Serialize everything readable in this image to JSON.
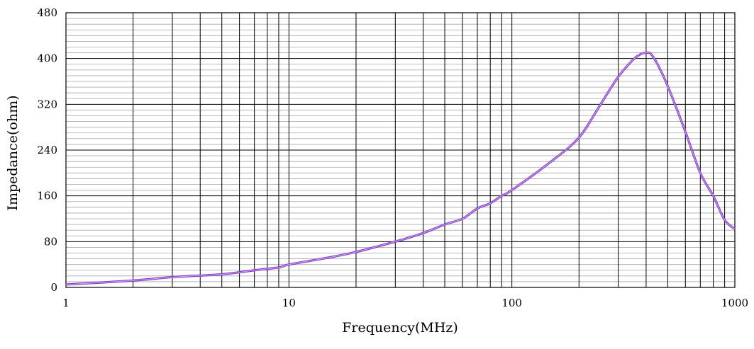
{
  "chart_data": {
    "type": "line",
    "xlabel": "Frequency(MHz)",
    "ylabel": "Impedance(ohm)",
    "x_scale": "log",
    "xlim": [
      1,
      1000
    ],
    "ylim": [
      0,
      480
    ],
    "x_ticks": [
      "1",
      "10",
      "100",
      "1000"
    ],
    "y_ticks": [
      "0",
      "80",
      "160",
      "240",
      "320",
      "400",
      "480"
    ],
    "grid": true,
    "colors": {
      "line": "#8a3cc9",
      "line_inner": "#c9b0ee",
      "grid_major": "#000000",
      "grid_minor": "#a8a8a8"
    },
    "series": [
      {
        "x": [
          1,
          2,
          3,
          5,
          7,
          9,
          10,
          15,
          20,
          30,
          40,
          50,
          60,
          70,
          80,
          90,
          100,
          150,
          200,
          250,
          300,
          350,
          380,
          400,
          420,
          450,
          500,
          600,
          700,
          800,
          900,
          1000
        ],
        "y": [
          5,
          12,
          18,
          23,
          30,
          35,
          40,
          52,
          62,
          80,
          95,
          110,
          120,
          138,
          147,
          160,
          170,
          220,
          262,
          320,
          368,
          398,
          408,
          410,
          408,
          390,
          352,
          272,
          200,
          160,
          118,
          102
        ]
      }
    ]
  }
}
